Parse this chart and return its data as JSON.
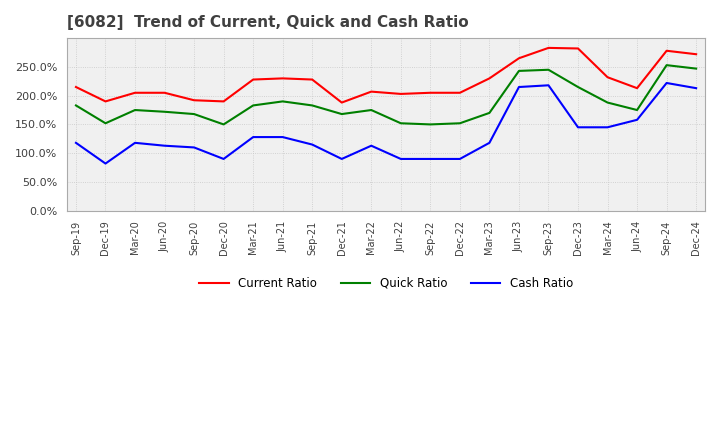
{
  "title": "[6082]  Trend of Current, Quick and Cash Ratio",
  "title_fontsize": 11,
  "title_color": "#404040",
  "x_labels": [
    "Sep-19",
    "Dec-19",
    "Mar-20",
    "Jun-20",
    "Sep-20",
    "Dec-20",
    "Mar-21",
    "Jun-21",
    "Sep-21",
    "Dec-21",
    "Mar-22",
    "Jun-22",
    "Sep-22",
    "Dec-22",
    "Mar-23",
    "Jun-23",
    "Sep-23",
    "Dec-23",
    "Mar-24",
    "Jun-24",
    "Sep-24",
    "Dec-24"
  ],
  "current_ratio": [
    215,
    190,
    205,
    205,
    192,
    190,
    228,
    230,
    228,
    188,
    207,
    203,
    205,
    205,
    230,
    265,
    283,
    282,
    232,
    213,
    278,
    272
  ],
  "quick_ratio": [
    183,
    152,
    175,
    172,
    168,
    150,
    183,
    190,
    183,
    168,
    175,
    152,
    150,
    152,
    170,
    243,
    245,
    215,
    188,
    175,
    253,
    247
  ],
  "cash_ratio": [
    118,
    82,
    118,
    113,
    110,
    90,
    128,
    128,
    115,
    90,
    113,
    90,
    90,
    90,
    118,
    215,
    218,
    145,
    145,
    158,
    222,
    213
  ],
  "current_color": "#ff0000",
  "quick_color": "#008000",
  "cash_color": "#0000ff",
  "ylim": [
    0,
    300
  ],
  "yticks": [
    0,
    50,
    100,
    150,
    200,
    250
  ],
  "grid_color": "#c8c8c8",
  "background_color": "#ffffff",
  "plot_background": "#f0f0f0"
}
